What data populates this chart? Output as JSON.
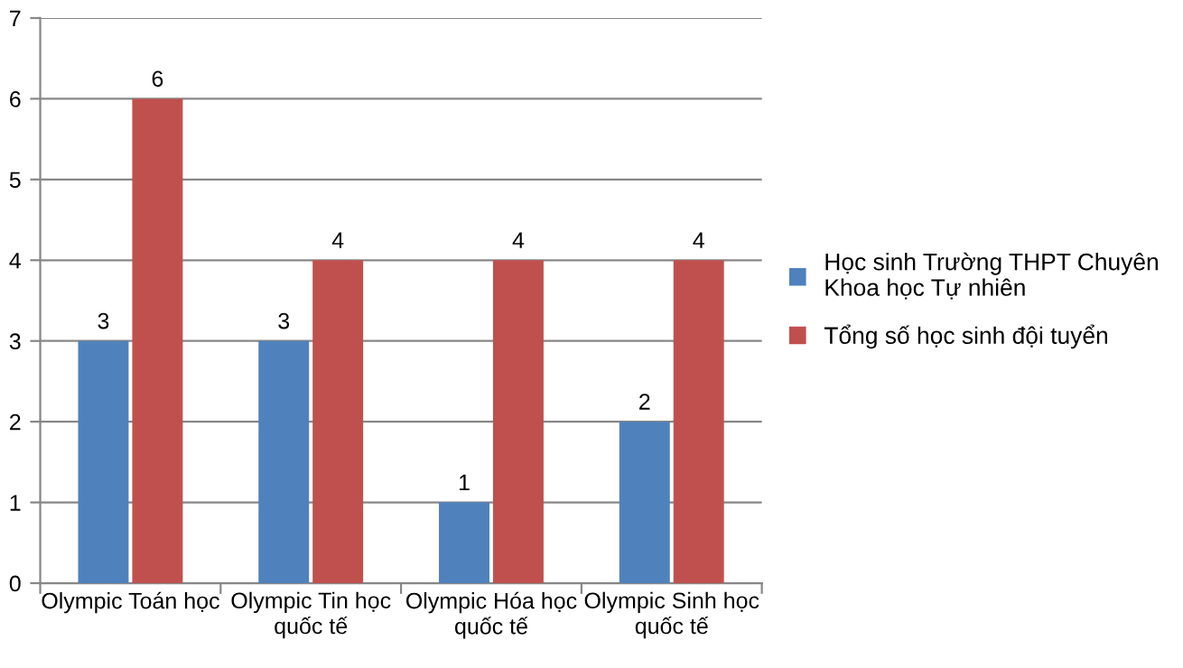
{
  "chart_data": {
    "type": "bar",
    "categories": [
      "Olympic Toán học",
      "Olympic Tin học\nquốc tế",
      "Olympic Hóa học\nquốc tế",
      "Olympic Sinh học\nquốc tế"
    ],
    "series": [
      {
        "name": "Học sinh Trường THPT Chuyên\nKhoa học Tự nhiên",
        "color": "#4f81bd",
        "values": [
          3,
          3,
          1,
          2
        ]
      },
      {
        "name": "Tổng số học sinh đội tuyển",
        "color": "#c0504d",
        "values": [
          6,
          4,
          4,
          4
        ]
      }
    ],
    "ylim": [
      0,
      7
    ],
    "yticks": [
      0,
      1,
      2,
      3,
      4,
      5,
      6,
      7
    ],
    "grid": "y",
    "legend": "right",
    "data_labels": true
  }
}
